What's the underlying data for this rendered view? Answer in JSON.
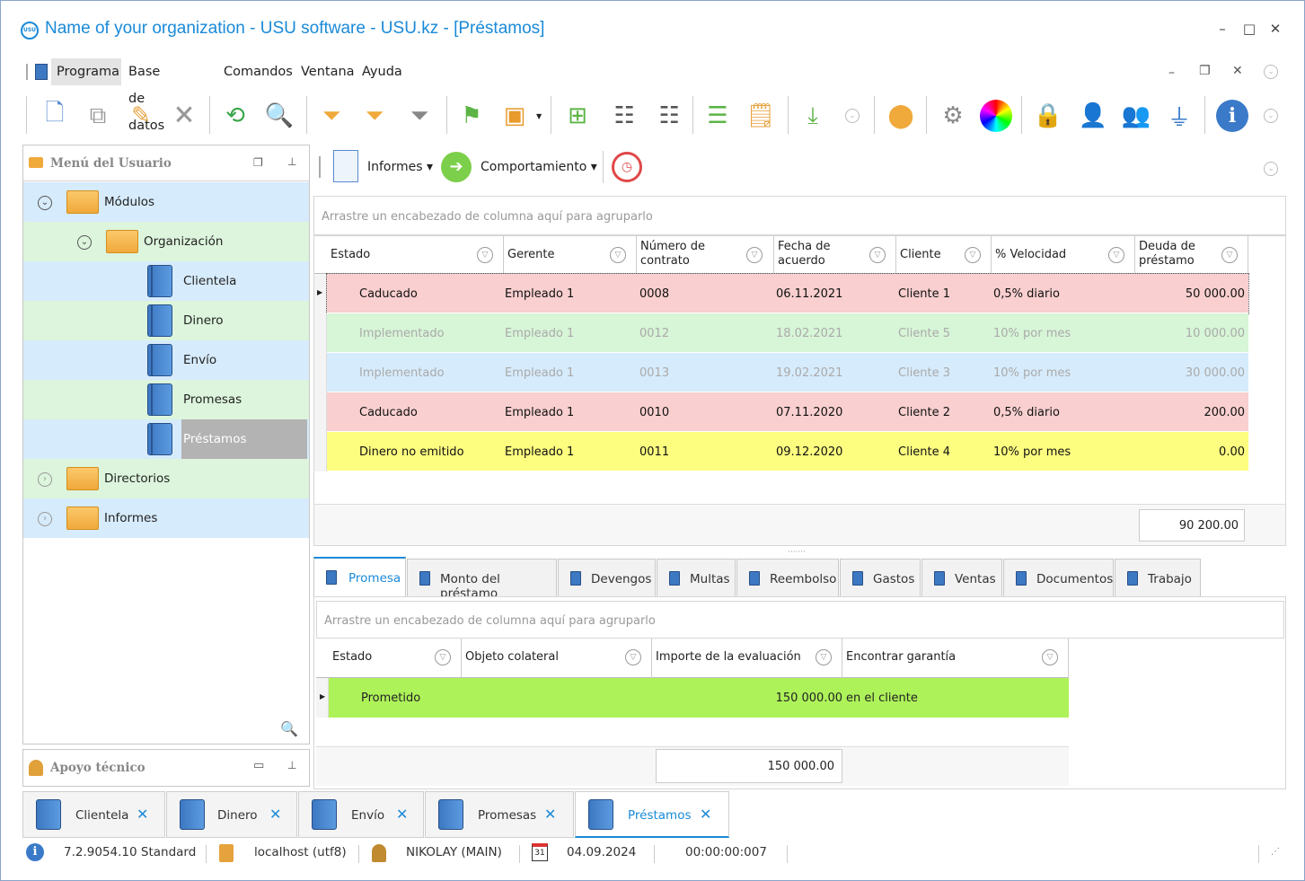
{
  "window": {
    "title": "Name of your organization - USU software - USU.kz - [Préstamos]",
    "logo_text": "USU",
    "controls": [
      "–",
      "□",
      "✕"
    ]
  },
  "menu": {
    "items": [
      "Programa",
      "Base de datos",
      "Comandos",
      "Ventana",
      "Ayuda"
    ],
    "active": "Programa"
  },
  "left_panel": {
    "title": "Menú del Usuario",
    "tree": {
      "modules": "Módulos",
      "organization": "Organización",
      "items": [
        "Clientela",
        "Dinero",
        "Envío",
        "Promesas",
        "Préstamos"
      ],
      "selected": "Préstamos",
      "directories": "Directorios",
      "reports": "Informes"
    }
  },
  "support_panel": {
    "title": "Apoyo técnico"
  },
  "subtoolbar": {
    "reports": "Informes",
    "behavior": "Comportamiento"
  },
  "main_grid": {
    "group_hint": "Arrastre un encabezado de columna aquí para agruparlo",
    "columns": [
      "Estado",
      "Gerente",
      "Número de contrato",
      "Fecha de acuerdo",
      "Cliente",
      "% Velocidad",
      "Deuda de préstamo"
    ],
    "rows": [
      {
        "estado": "Caducado",
        "gerente": "Empleado 1",
        "numero": "0008",
        "fecha": "06.11.2021",
        "cliente": "Cliente 1",
        "velocidad": "0,5% diario",
        "deuda": "50 000.00",
        "bg": "#f9cfcf",
        "dim": false
      },
      {
        "estado": "Implementado",
        "gerente": "Empleado 1",
        "numero": "0012",
        "fecha": "18.02.2021",
        "cliente": "Cliente 5",
        "velocidad": "10% por mes",
        "deuda": "10 000.00",
        "bg": "#d7f5d7",
        "dim": true
      },
      {
        "estado": "Implementado",
        "gerente": "Empleado 1",
        "numero": "0013",
        "fecha": "19.02.2021",
        "cliente": "Cliente 3",
        "velocidad": "10% por mes",
        "deuda": "30 000.00",
        "bg": "#d6ebfb",
        "dim": true
      },
      {
        "estado": "Caducado",
        "gerente": "Empleado 1",
        "numero": "0010",
        "fecha": "07.11.2020",
        "cliente": "Cliente 2",
        "velocidad": "0,5% diario",
        "deuda": "200.00",
        "bg": "#f9cfcf",
        "dim": false
      },
      {
        "estado": "Dinero no emitido",
        "gerente": "Empleado 1",
        "numero": "0011",
        "fecha": "09.12.2020",
        "cliente": "Cliente 4",
        "velocidad": "10% por mes",
        "deuda": "0.00",
        "bg": "#fdfd80",
        "dim": false
      }
    ],
    "total": "90 200.00"
  },
  "detail_tabs": [
    "Promesa",
    "Monto del préstamo",
    "Devengos",
    "Multas",
    "Reembolso",
    "Gastos",
    "Ventas",
    "Documentos",
    "Trabajo"
  ],
  "detail_grid": {
    "group_hint": "Arrastre un encabezado de columna aquí para agruparlo",
    "columns": [
      "Estado",
      "Objeto colateral",
      "Importe de la evaluación",
      "Encontrar garantía"
    ],
    "rows": [
      {
        "estado": "Prometido",
        "objeto": "",
        "importe": "150 000.00",
        "garantia": "en el cliente"
      }
    ],
    "total": "150 000.00"
  },
  "doc_tabs": [
    "Clientela",
    "Dinero",
    "Envío",
    "Promesas",
    "Préstamos"
  ],
  "doc_tab_active": "Préstamos",
  "status": {
    "version": "7.2.9054.10 Standard",
    "db": "localhost (utf8)",
    "user": "NIKOLAY (MAIN)",
    "calendar_day": "31",
    "date": "04.09.2024",
    "timer": "00:00:00:007"
  },
  "colors": {
    "accent": "#1a8ad8",
    "tree_blue": "#d6ebfb",
    "tree_green": "#dcf5dc",
    "row_red": "#f9cfcf",
    "row_green": "#d7f5d7",
    "row_blue": "#d6ebfb",
    "row_yellow": "#fdfd80",
    "detail_row": "#aef25a"
  }
}
